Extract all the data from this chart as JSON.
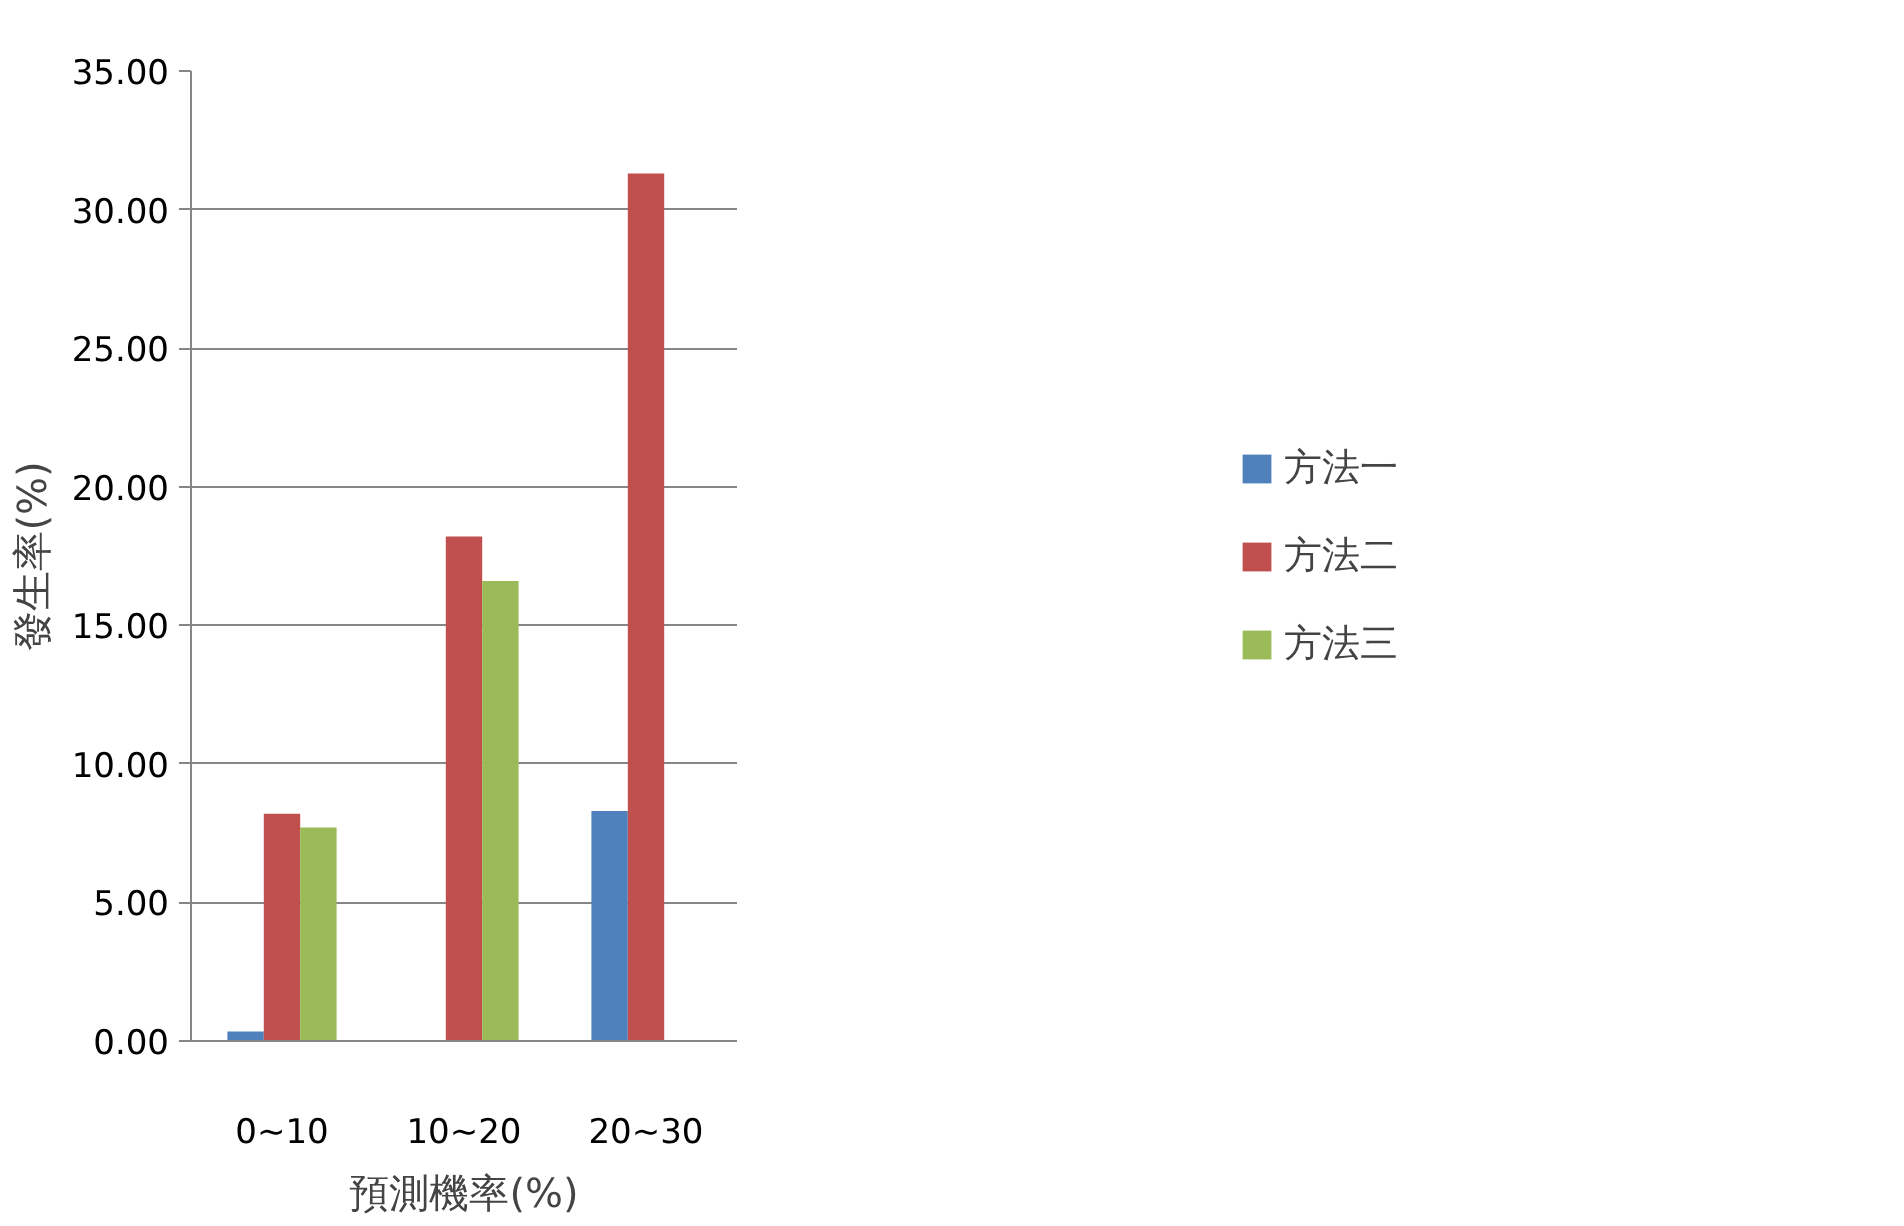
{
  "chart_data": {
    "type": "bar",
    "xlabel": "預測機率(%)",
    "ylabel": "發生率(%)",
    "categories": [
      "0~10",
      "10~20",
      "20~30"
    ],
    "series": [
      {
        "name": "方法一",
        "color": "#4f81bd",
        "values": [
          0.34,
          0,
          8.3
        ]
      },
      {
        "name": "方法二",
        "color": "#c0504d",
        "values": [
          8.2,
          18.2,
          31.3
        ]
      },
      {
        "name": "方法三",
        "color": "#9bbb59",
        "values": [
          7.7,
          16.6,
          0
        ]
      }
    ],
    "ylim": [
      0,
      35
    ],
    "yticks": [
      {
        "value": 0,
        "label": "0.00"
      },
      {
        "value": 5,
        "label": "5.00"
      },
      {
        "value": 10,
        "label": "10.00"
      },
      {
        "value": 15,
        "label": "15.00"
      },
      {
        "value": 20,
        "label": "20.00"
      },
      {
        "value": 25,
        "label": "25.00"
      },
      {
        "value": 30,
        "label": "30.00"
      },
      {
        "value": 35,
        "label": "35.00"
      }
    ],
    "grid": "y",
    "legend": "right"
  }
}
